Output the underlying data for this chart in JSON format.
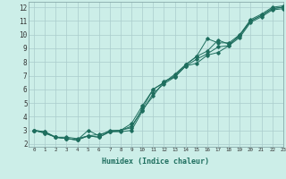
{
  "xlabel": "Humidex (Indice chaleur)",
  "ylabel": "",
  "xlim": [
    -0.5,
    23
  ],
  "ylim": [
    1.8,
    12.4
  ],
  "yticks": [
    2,
    3,
    4,
    5,
    6,
    7,
    8,
    9,
    10,
    11,
    12
  ],
  "xticks": [
    0,
    1,
    2,
    3,
    4,
    5,
    6,
    7,
    8,
    9,
    10,
    11,
    12,
    13,
    14,
    15,
    16,
    17,
    18,
    19,
    20,
    21,
    22,
    23
  ],
  "xtick_labels": [
    "0",
    "1",
    "2",
    "3",
    "4",
    "5",
    "6",
    "7",
    "8",
    "9",
    "10",
    "11",
    "12",
    "13",
    "14",
    "15",
    "16",
    "17",
    "18",
    "19",
    "20",
    "21",
    "22",
    "23"
  ],
  "bg_color": "#cceee8",
  "line_color": "#1e6e5e",
  "grid_color": "#aacccc",
  "series": [
    {
      "x": [
        0,
        1,
        2,
        3,
        4,
        5,
        6,
        7,
        8,
        9,
        10,
        11,
        12,
        13,
        14,
        15,
        16,
        17,
        18,
        19,
        20,
        21,
        22,
        23
      ],
      "y": [
        3.0,
        2.9,
        2.5,
        2.4,
        2.3,
        3.0,
        2.6,
        3.0,
        3.0,
        3.3,
        4.5,
        5.5,
        6.6,
        6.9,
        7.7,
        7.9,
        8.5,
        8.7,
        9.2,
        10.0,
        11.1,
        11.5,
        12.0,
        12.1
      ]
    },
    {
      "x": [
        0,
        1,
        2,
        3,
        4,
        5,
        6,
        7,
        8,
        9,
        10,
        11,
        12,
        13,
        14,
        15,
        16,
        17,
        18,
        19,
        20,
        21,
        22,
        23
      ],
      "y": [
        3.0,
        2.9,
        2.5,
        2.5,
        2.4,
        2.6,
        2.7,
        2.9,
        3.0,
        3.5,
        4.8,
        6.0,
        6.5,
        7.1,
        7.8,
        8.4,
        8.8,
        9.6,
        9.3,
        9.9,
        11.0,
        11.4,
        11.9,
        12.0
      ]
    },
    {
      "x": [
        0,
        1,
        2,
        3,
        4,
        5,
        6,
        7,
        8,
        9,
        10,
        11,
        12,
        13,
        14,
        15,
        16,
        17,
        18,
        19,
        20,
        21,
        22,
        23
      ],
      "y": [
        3.0,
        2.8,
        2.5,
        2.4,
        2.3,
        2.6,
        2.5,
        2.9,
        3.0,
        3.2,
        4.6,
        6.0,
        6.5,
        7.0,
        7.8,
        8.4,
        9.7,
        9.4,
        9.4,
        10.0,
        11.0,
        11.4,
        11.9,
        12.0
      ]
    },
    {
      "x": [
        0,
        1,
        2,
        3,
        4,
        5,
        6,
        7,
        8,
        9,
        10,
        11,
        12,
        13,
        14,
        15,
        16,
        17,
        18,
        19,
        20,
        21,
        22,
        23
      ],
      "y": [
        3.0,
        2.8,
        2.5,
        2.4,
        2.3,
        2.6,
        2.5,
        2.9,
        2.9,
        3.0,
        4.4,
        5.7,
        6.4,
        6.9,
        7.7,
        8.2,
        8.6,
        9.1,
        9.2,
        9.8,
        10.9,
        11.3,
        11.8,
        11.9
      ]
    }
  ]
}
